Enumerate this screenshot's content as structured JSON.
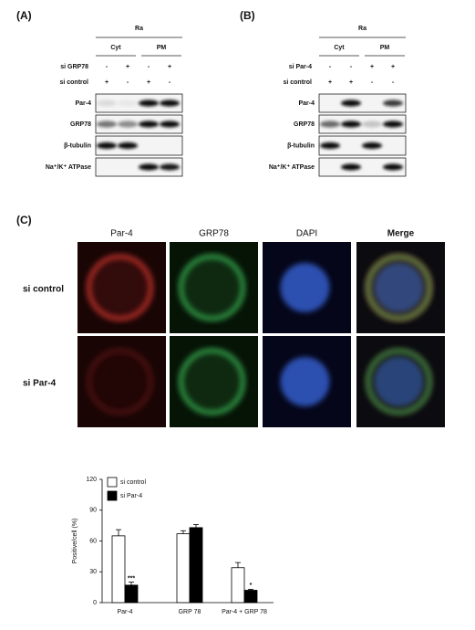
{
  "panels": [
    {
      "label": "(A)",
      "cell": "Ra",
      "fractions": [
        "Cyt",
        "PM"
      ],
      "conditions": [
        {
          "name": "si GRP78",
          "signs": [
            "-",
            "+",
            "-",
            "+"
          ]
        },
        {
          "name": "si control",
          "signs": [
            "+",
            "-",
            "+",
            "-"
          ]
        }
      ],
      "blots": [
        "Par-4",
        "GRP78",
        "β-tubulin",
        "Na⁺/K⁺ ATPase"
      ]
    },
    {
      "label": "(B)",
      "cell": "Ra",
      "fractions": [
        "Cyt",
        "PM"
      ],
      "conditions": [
        {
          "name": "si Par-4",
          "signs": [
            "-",
            "-",
            "+",
            "+"
          ]
        },
        {
          "name": "si control",
          "signs": [
            "+",
            "+",
            "-",
            "-"
          ]
        }
      ],
      "blots": [
        "Par-4",
        "GRP78",
        "β-tubulin",
        "Na⁺/K⁺ ATPase"
      ]
    }
  ],
  "imaging": {
    "label": "(C)",
    "channels": [
      "Par-4",
      "GRP78",
      "DAPI",
      "Merge"
    ],
    "colors": [
      "#d9302a",
      "#2fa84a",
      "#2f6fc4",
      "#111111"
    ],
    "rows": [
      "si control",
      "si Par-4"
    ]
  },
  "chart_data": {
    "type": "bar",
    "ylabel": "Positive/cell (%)",
    "categories": [
      "Par-4",
      "GRP 78",
      "Par-4 + GRP 78"
    ],
    "series": [
      {
        "name": "si control",
        "color": "#ffffff",
        "values": [
          65,
          67,
          34
        ],
        "errors": [
          6,
          3,
          5
        ],
        "significance": [
          null,
          null,
          null
        ]
      },
      {
        "name": "si Par-4",
        "color": "#000000",
        "values": [
          17,
          73,
          12
        ],
        "errors": [
          3,
          3,
          1
        ],
        "significance": [
          "***",
          null,
          "*"
        ]
      }
    ],
    "ylim": [
      0,
      120
    ],
    "yticks": [
      0,
      30,
      60,
      90,
      120
    ],
    "legend": "top-left"
  }
}
